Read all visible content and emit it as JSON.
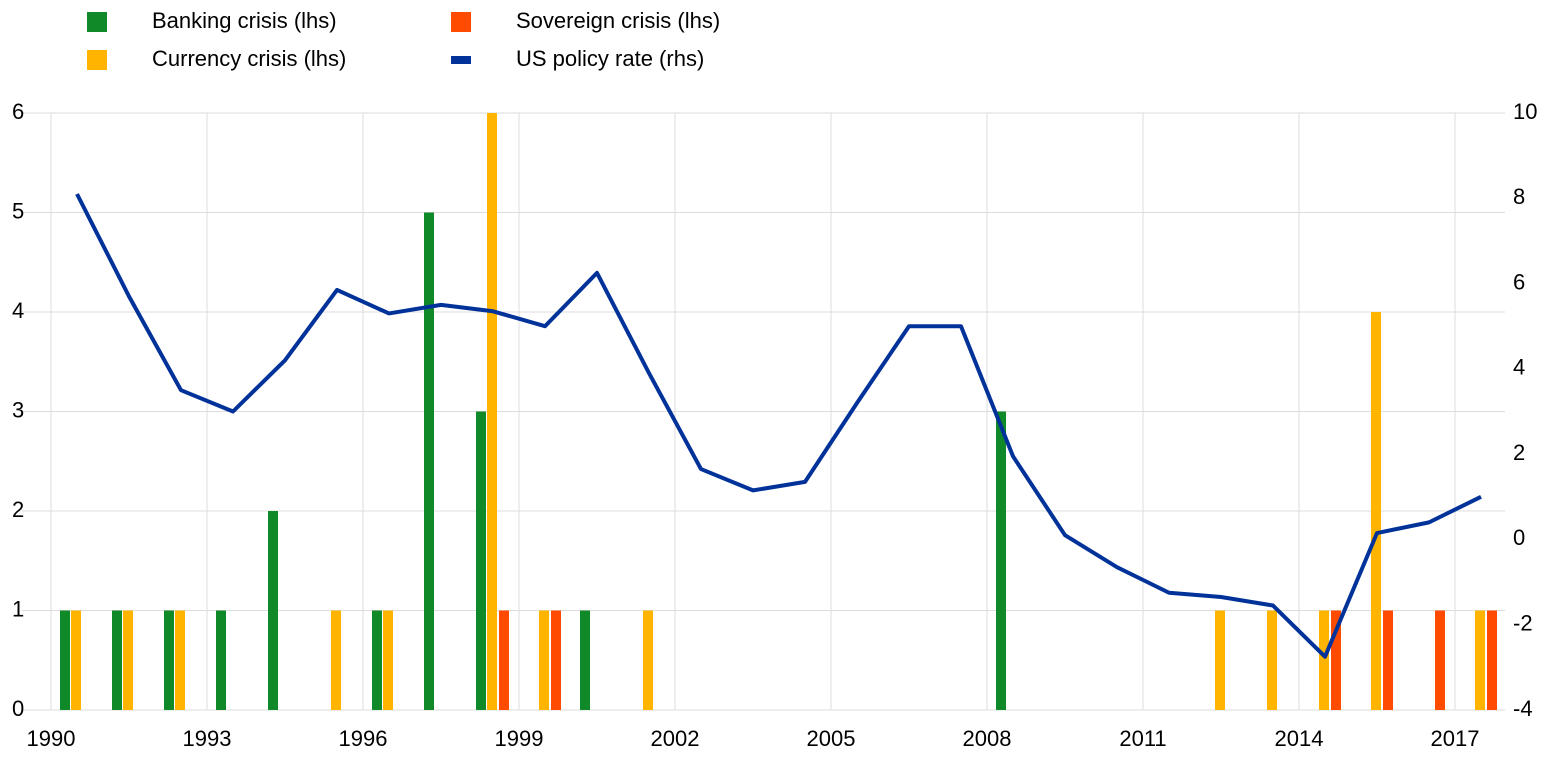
{
  "chart_data": {
    "type": "bar",
    "categories": [
      "1990",
      null,
      null,
      "1993",
      null,
      null,
      "1996",
      null,
      null,
      "1999",
      null,
      null,
      "2002",
      null,
      null,
      "2005",
      null,
      null,
      "2008",
      null,
      null,
      "2011",
      null,
      null,
      "2014",
      null,
      null,
      "2017"
    ],
    "ylim": [
      0,
      6
    ],
    "yticks": [
      0,
      1,
      2,
      3,
      4,
      5,
      6
    ],
    "y2lim": [
      -4,
      10
    ],
    "y2ticks": [
      -4,
      -2,
      0,
      2,
      4,
      6,
      8,
      10
    ],
    "grid": true,
    "series": [
      {
        "name": "Banking crisis (lhs)",
        "type": "bar",
        "color": "#108a28",
        "values": [
          1,
          1,
          1,
          1,
          2,
          0,
          1,
          5,
          3,
          0,
          1,
          0,
          0,
          0,
          0,
          0,
          0,
          0,
          3,
          0,
          0,
          0,
          0,
          0,
          0,
          0,
          0,
          0
        ]
      },
      {
        "name": "Currency crisis (lhs)",
        "type": "bar",
        "color": "#ffb400",
        "values": [
          1,
          1,
          1,
          0,
          0,
          1,
          1,
          0,
          6,
          1,
          0,
          1,
          0,
          0,
          0,
          0,
          0,
          0,
          0,
          0,
          0,
          0,
          1,
          1,
          1,
          4,
          0,
          1
        ]
      },
      {
        "name": "Sovereign crisis (lhs)",
        "type": "bar",
        "color": "#ff4b00",
        "values": [
          0,
          0,
          0,
          0,
          0,
          0,
          0,
          0,
          1,
          1,
          0,
          0,
          0,
          0,
          0,
          0,
          0,
          0,
          0,
          0,
          0,
          0,
          0,
          0,
          1,
          1,
          1,
          1
        ]
      },
      {
        "name": "US policy rate (rhs)",
        "type": "line",
        "axis": "y2",
        "color": "#003299",
        "values": [
          8.1,
          5.7,
          3.5,
          3.0,
          4.2,
          5.85,
          5.3,
          5.5,
          5.35,
          5.0,
          6.25,
          3.9,
          1.65,
          1.15,
          1.35,
          3.2,
          5.0,
          5.0,
          1.95,
          0.1,
          -0.65,
          -1.25,
          -1.35,
          -1.55,
          -2.75,
          0.15,
          0.4,
          1.0
        ]
      }
    ]
  }
}
